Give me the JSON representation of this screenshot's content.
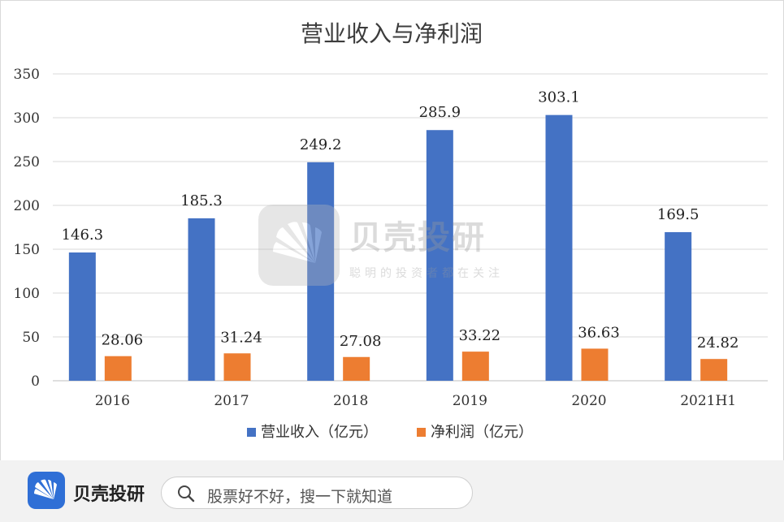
{
  "chart_data": {
    "type": "bar",
    "title": "营业收入与净利润",
    "categories": [
      "2016",
      "2017",
      "2018",
      "2019",
      "2020",
      "2021H1"
    ],
    "series": [
      {
        "name": "营业收入（亿元）",
        "values": [
          146.3,
          185.3,
          249.2,
          285.9,
          303.1,
          169.5
        ],
        "labels": [
          "146.3",
          "185.3",
          "249.2",
          "285.9",
          "303.1",
          "169.5"
        ],
        "color": "#4472c4"
      },
      {
        "name": "净利润（亿元）",
        "values": [
          28.06,
          31.24,
          27.08,
          33.22,
          36.63,
          24.82
        ],
        "labels": [
          "28.06",
          "31.24",
          "27.08",
          "33.22",
          "36.63",
          "24.82"
        ],
        "color": "#ed7d31"
      }
    ],
    "ylim": [
      0,
      350
    ],
    "yticks": [
      "0",
      "50",
      "100",
      "150",
      "200",
      "250",
      "300",
      "350"
    ],
    "grid": true,
    "legend": "bottom"
  },
  "watermark": {
    "brand": "贝壳投研",
    "slogan": "聪明的投资者都在关注",
    "logo_color": "#b9b9b9"
  },
  "footer": {
    "brand_name": "贝壳投研",
    "logo_color": "#2f6fd6",
    "logo_icon": "shell-icon",
    "search_icon": "search-icon",
    "search_placeholder": "股票好不好，搜一下就知道"
  }
}
